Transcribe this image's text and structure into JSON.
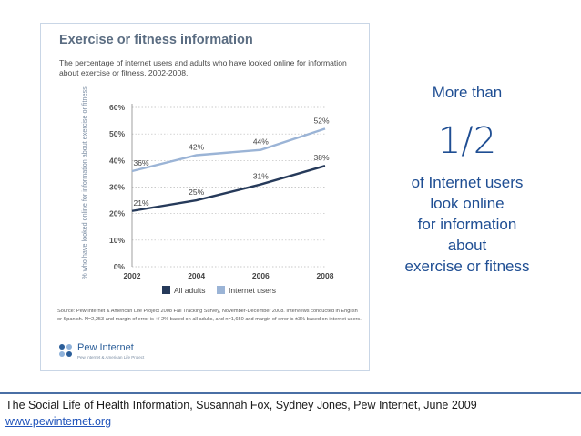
{
  "figure": {
    "title": "Exercise or fitness information",
    "subtitle": "The percentage of internet users and adults who have looked online for information about exercise or fitness, 2002-2008.",
    "source": "Source: Pew Internet & American Life Project 2008 Fall Tracking Survey, November-December 2008. Interviews conducted in English or Spanish. N=2,253 and margin of error is +/-2% based on all adults, and n=1,650 and margin of error is ±3% based on internet users.",
    "logo_name": "Pew Internet",
    "logo_tagline": "Pew Internet & American Life Project"
  },
  "chart_data": {
    "type": "line",
    "title": "Exercise or fitness information",
    "x": [
      2002,
      2004,
      2006,
      2008
    ],
    "ylabel": "% who have looked online for information about exercise or fitness",
    "xlabel": "",
    "ylim": [
      0,
      60
    ],
    "yticks": [
      "0%",
      "10%",
      "20%",
      "30%",
      "40%",
      "50%",
      "60%"
    ],
    "series": [
      {
        "name": "All adults",
        "color": "#263a5a",
        "values": [
          21,
          25,
          31,
          38
        ],
        "labels": [
          "21%",
          "25%",
          "31%",
          "38%"
        ]
      },
      {
        "name": "Internet users",
        "color": "#9bb4d6",
        "values": [
          36,
          42,
          44,
          52
        ],
        "labels": [
          "36%",
          "42%",
          "44%",
          "52%"
        ]
      }
    ],
    "legend": "bottom"
  },
  "callout": {
    "line1": "More than",
    "fraction": "1/2",
    "line3": "of Internet users",
    "line4": "look online",
    "line5": "for information",
    "line6": "about",
    "line7": "exercise or fitness"
  },
  "footer": {
    "citation": "The Social Life of Health Information, Susannah Fox, Sydney Jones, Pew Internet,  June 2009",
    "link": "www.pewinternet.org"
  },
  "colors": {
    "accent": "#1f4e93",
    "dark_series": "#263a5a",
    "light_series": "#9bb4d6"
  }
}
